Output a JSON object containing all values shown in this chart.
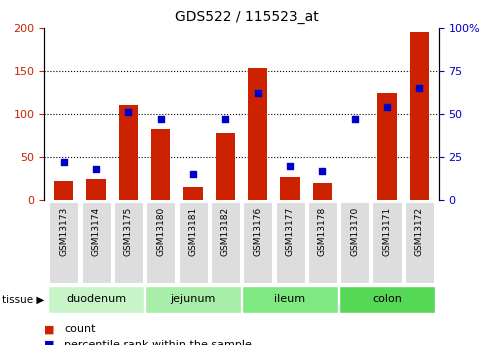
{
  "title": "GDS522 / 115523_at",
  "samples": [
    "GSM13173",
    "GSM13174",
    "GSM13175",
    "GSM13180",
    "GSM13181",
    "GSM13182",
    "GSM13176",
    "GSM13177",
    "GSM13178",
    "GSM13170",
    "GSM13171",
    "GSM13172"
  ],
  "counts": [
    22,
    25,
    110,
    82,
    15,
    78,
    153,
    27,
    20,
    0,
    124,
    195
  ],
  "percentiles": [
    22,
    18,
    51,
    47,
    15,
    47,
    62,
    20,
    17,
    47,
    54,
    65
  ],
  "tissues": [
    {
      "label": "duodenum",
      "start": 0,
      "end": 3,
      "color": "#c8f5c8"
    },
    {
      "label": "jejunum",
      "start": 3,
      "end": 6,
      "color": "#a8eda8"
    },
    {
      "label": "ileum",
      "start": 6,
      "end": 9,
      "color": "#80e880"
    },
    {
      "label": "colon",
      "start": 9,
      "end": 12,
      "color": "#55d855"
    }
  ],
  "bar_color": "#cc2200",
  "dot_color": "#0000cc",
  "left_ylim": [
    0,
    200
  ],
  "right_ylim": [
    0,
    100
  ],
  "left_yticks": [
    0,
    50,
    100,
    150,
    200
  ],
  "right_yticks": [
    0,
    25,
    50,
    75,
    100
  ],
  "right_yticklabels": [
    "0",
    "25",
    "50",
    "75",
    "100%"
  ],
  "bar_width": 0.6,
  "bg_color": "#ffffff",
  "xtick_bg_color": "#dddddd"
}
